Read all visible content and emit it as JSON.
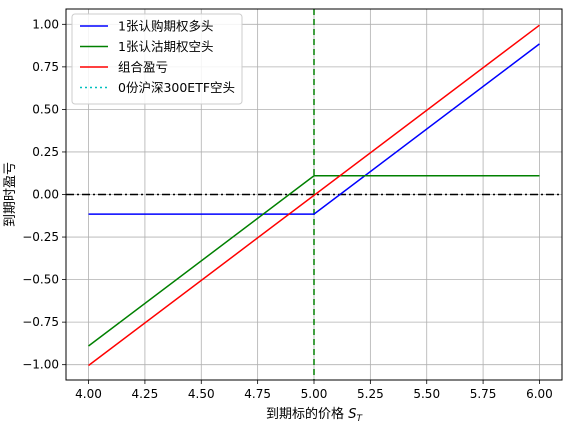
{
  "chart_data": {
    "type": "line",
    "xlabel": "到期标的价格",
    "xlabel_math": "S",
    "xlabel_sub": "T",
    "ylabel": "到期时盈亏",
    "xlim": [
      3.9,
      6.1
    ],
    "ylim": [
      -1.09,
      1.09
    ],
    "x_ticks": [
      4.0,
      4.25,
      4.5,
      4.75,
      5.0,
      5.25,
      5.5,
      5.75,
      6.0
    ],
    "x_tick_labels": [
      "4.00",
      "4.25",
      "4.50",
      "4.75",
      "5.00",
      "5.25",
      "5.50",
      "5.75",
      "6.00"
    ],
    "y_ticks": [
      -1.0,
      -0.75,
      -0.5,
      -0.25,
      0.0,
      0.25,
      0.5,
      0.75,
      1.0
    ],
    "y_tick_labels": [
      "−1.00",
      "−0.75",
      "−0.50",
      "−0.25",
      "0.00",
      "0.25",
      "0.50",
      "0.75",
      "1.00"
    ],
    "grid": true,
    "legend_position": "top-left",
    "series": [
      {
        "name": "1张认购期权多头",
        "color": "#0000ff",
        "style": "solid",
        "x": [
          4.0,
          5.0,
          6.0
        ],
        "y": [
          -0.115,
          -0.115,
          0.885
        ]
      },
      {
        "name": "1张认沽期权空头",
        "color": "#008000",
        "style": "solid",
        "x": [
          4.0,
          5.0,
          6.0
        ],
        "y": [
          -0.89,
          0.11,
          0.11
        ]
      },
      {
        "name": "组合盈亏",
        "color": "#ff0000",
        "style": "solid",
        "x": [
          4.0,
          6.0
        ],
        "y": [
          -1.005,
          0.995
        ]
      },
      {
        "name": "0份沪深300ETF空头",
        "color": "#00bfbf",
        "style": "dotted",
        "x": [],
        "y": []
      }
    ],
    "reference_lines": [
      {
        "orientation": "horizontal",
        "value": 0.0,
        "color": "#000000",
        "style": "dashdot"
      },
      {
        "orientation": "vertical",
        "value": 5.0,
        "color": "#008000",
        "style": "dashed"
      }
    ]
  }
}
